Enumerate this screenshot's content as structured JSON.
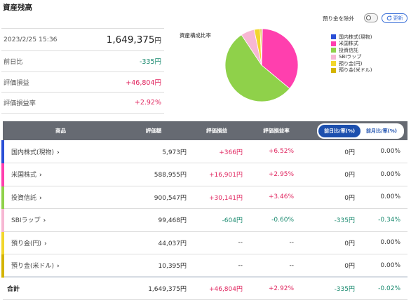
{
  "page": {
    "title": "資産残高"
  },
  "summary": {
    "datetime": "2023/2/25 15:36",
    "total": "1,649,375",
    "total_unit": "円",
    "rows": [
      {
        "label": "前日比",
        "value": "-335円"
      },
      {
        "label": "評価損益",
        "value": "+46,804円"
      },
      {
        "label": "評価損益率",
        "value": "+2.92%"
      }
    ]
  },
  "controls": {
    "exclude_deposit_label": "預り金を除外",
    "update_label": "更新"
  },
  "chart_title": "資産構成比率",
  "chart_data": {
    "type": "pie",
    "title": "資産構成比率",
    "labels": [
      "国内株式(現物)",
      "米国株式",
      "投資信託",
      "SBIラップ",
      "預り金(円)",
      "預り金(米ドル)"
    ],
    "values": [
      5973,
      588955,
      900547,
      99468,
      44037,
      10395
    ],
    "colors": [
      "#2a4fd6",
      "#ff3fae",
      "#8fd14a",
      "#f7b7d3",
      "#f2d62c",
      "#d4b400"
    ],
    "legend_position": "right"
  },
  "table": {
    "headers": {
      "name": "商品",
      "valuation": "評価額",
      "pl": "評価損益",
      "pl_rate": "評価損益率",
      "tab_prev_day": "前日比/率(%)",
      "tab_prev_month": "前月比/率(%)"
    },
    "rows": [
      {
        "name": "国内株式(現物)",
        "color": "#2a4fd6",
        "valuation": "5,973円",
        "pl": "+366円",
        "pl_rate": "+6.52%",
        "diff": "0円",
        "diff_rate": "0.00%"
      },
      {
        "name": "米国株式",
        "color": "#ff3fae",
        "valuation": "588,955円",
        "pl": "+16,901円",
        "pl_rate": "+2.95%",
        "diff": "0円",
        "diff_rate": "0.00%"
      },
      {
        "name": "投資信託",
        "color": "#8fd14a",
        "valuation": "900,547円",
        "pl": "+30,141円",
        "pl_rate": "+3.46%",
        "diff": "0円",
        "diff_rate": "0.00%"
      },
      {
        "name": "SBIラップ",
        "color": "#f7b7d3",
        "valuation": "99,468円",
        "pl": "-604円",
        "pl_rate": "-0.60%",
        "diff": "-335円",
        "diff_rate": "-0.34%"
      },
      {
        "name": "預り金(円)",
        "color": "#f2d62c",
        "valuation": "44,037円",
        "pl": "--",
        "pl_rate": "--",
        "diff": "0円",
        "diff_rate": "0.00%"
      },
      {
        "name": "預り金(米ドル)",
        "color": "#d4b400",
        "valuation": "10,395円",
        "pl": "--",
        "pl_rate": "--",
        "diff": "0円",
        "diff_rate": "0.00%"
      }
    ],
    "total": {
      "label": "合計",
      "valuation": "1,649,375円",
      "pl": "+46,804円",
      "pl_rate": "+2.92%",
      "diff": "-335円",
      "diff_rate": "-0.02%"
    }
  }
}
